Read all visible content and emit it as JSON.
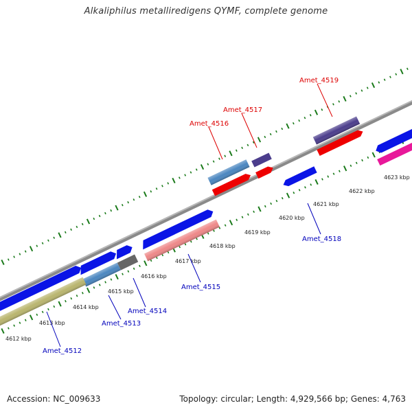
{
  "title": "Alkaliphilus metalliredigens QYMF, complete genome",
  "footer": {
    "accession": "Accession: NC_009633",
    "topology": "Topology: circular; Length: 4,929,566 bp; Genes: 4,763"
  },
  "colors": {
    "backbone": "#8a8a8a",
    "ticks": "#1a7a1a",
    "label_red": "#dd0000",
    "label_blue": "#0000bb",
    "gene_blue": "#0a14e6",
    "gene_red": "#ee0000",
    "gene_purple": "#4b3d8c",
    "gene_steelblue": "#4a86c0",
    "gene_pink": "#ee7777",
    "gene_khaki": "#b9b56e",
    "gene_gray": "#666666",
    "gene_magenta": "#e8189a"
  },
  "scale_labels": [
    "4612 kbp",
    "4613 kbp",
    "4614 kbp",
    "4615 kbp",
    "4616 kbp",
    "4617 kbp",
    "4618 kbp",
    "4619 kbp",
    "4620 kbp",
    "4621 kbp",
    "4622 kbp",
    "4623 kbp"
  ],
  "gene_labels": [
    {
      "text": "Amet_4519",
      "color": "red"
    },
    {
      "text": "Amet_4517",
      "color": "red"
    },
    {
      "text": "Amet_4516",
      "color": "red"
    },
    {
      "text": "Amet_4518",
      "color": "blue"
    },
    {
      "text": "Amet_4515",
      "color": "blue"
    },
    {
      "text": "Amet_4514",
      "color": "blue"
    },
    {
      "text": "Amet_4513",
      "color": "blue"
    },
    {
      "text": "Amet_4512",
      "color": "blue"
    }
  ]
}
